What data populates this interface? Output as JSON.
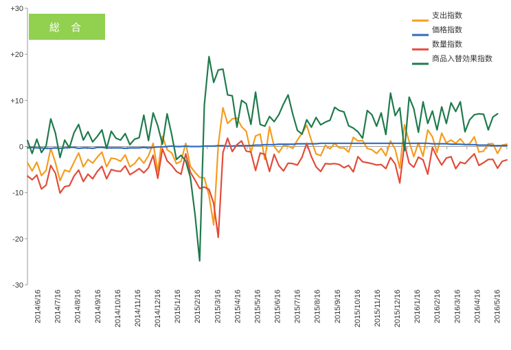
{
  "chart_data": {
    "type": "line",
    "badge": {
      "label": "総 合",
      "color": "#92D050"
    },
    "ylim": [
      -30,
      30
    ],
    "yticks": [
      30,
      20,
      10,
      0,
      -10,
      -20,
      -30
    ],
    "ytick_labels": [
      "+30",
      "+20",
      "+10",
      "0",
      "-10",
      "-20",
      "-30"
    ],
    "x_tick_labels": [
      "2014/6/16",
      "2014/7/16",
      "2014/8/16",
      "2014/9/16",
      "2014/10/16",
      "2014/11/16",
      "2014/12/16",
      "2015/1/16",
      "2015/2/16",
      "2015/3/16",
      "2015/4/16",
      "2015/5/16",
      "2015/6/16",
      "2015/7/16",
      "2015/8/16",
      "2015/9/16",
      "2015/10/16",
      "2015/11/16",
      "2015/12/16",
      "2016/1/16",
      "2016/2/16",
      "2016/3/16",
      "2016/4/16",
      "2016/5/16"
    ],
    "grid": false,
    "legend_position": "top-right",
    "series": [
      {
        "name": "支出指数",
        "color": "#F59C1D",
        "values": [
          -3.5,
          -5.3,
          -3.4,
          -6.3,
          -5.2,
          -0.4,
          -3.5,
          -7.4,
          -5.1,
          -5.5,
          -3.4,
          -1.4,
          -4.4,
          -2.8,
          -3.6,
          -2.3,
          -1.2,
          -4.4,
          -2.5,
          -2.7,
          -3.2,
          -1.8,
          -4.4,
          -3.7,
          -2.4,
          -3.6,
          -2.0,
          0.7,
          -5.4,
          2.2,
          -0.7,
          -1.4,
          -3.7,
          -3.2,
          0.7,
          -4.3,
          -5.6,
          -6.7,
          -6.8,
          -10.6,
          -17.0,
          0.4,
          8.4,
          5.0,
          6.0,
          6.2,
          4.3,
          3.3,
          -1.3,
          2.3,
          2.7,
          -2.8,
          4.3,
          0.0,
          -1.3,
          0.2,
          0.1,
          -0.4,
          1.4,
          2.9,
          4.6,
          1.3,
          -1.6,
          -2.0,
          0.3,
          -0.5,
          0.7,
          -0.3,
          -0.3,
          -1.2,
          2.0,
          1.2,
          1.3,
          -0.4,
          -0.7,
          -1.5,
          -0.4,
          -2.0,
          1.2,
          -0.6,
          -4.7,
          4.7,
          1.1,
          -2.2,
          0.8,
          -2.1,
          3.6,
          2.1,
          -1.3,
          2.9,
          0.8,
          1.4,
          0.7,
          1.7,
          0.4,
          0.6,
          2.1,
          -1.2,
          -1.0,
          0.6,
          0.6,
          -1.5,
          0.3,
          0.5
        ]
      },
      {
        "name": "価格指数",
        "color": "#2E6BC0",
        "values": [
          -0.3,
          -0.2,
          -0.3,
          -0.3,
          -0.4,
          -0.4,
          -0.3,
          -0.4,
          -0.3,
          -0.2,
          -0.2,
          -0.4,
          -0.3,
          -0.3,
          -0.4,
          -0.2,
          -0.2,
          -0.3,
          -0.3,
          -0.3,
          -0.3,
          -0.4,
          -0.3,
          -0.3,
          -0.3,
          -0.2,
          -0.3,
          -0.2,
          -0.1,
          -0.1,
          0.0,
          0.1,
          0.0,
          0.0,
          0.1,
          0.0,
          0.0,
          0.0,
          0.1,
          0.1,
          0.1,
          0.2,
          0.2,
          0.1,
          0.1,
          0.2,
          0.2,
          0.2,
          0.2,
          0.3,
          0.3,
          0.4,
          0.4,
          0.4,
          0.5,
          0.5,
          0.5,
          0.5,
          0.6,
          0.6,
          0.6,
          0.6,
          0.6,
          0.7,
          0.7,
          0.7,
          0.7,
          0.7,
          0.7,
          0.7,
          0.7,
          0.7,
          0.7,
          0.7,
          0.7,
          0.7,
          0.7,
          0.7,
          0.7,
          0.7,
          0.7,
          0.7,
          0.7,
          0.7,
          0.7,
          0.7,
          0.7,
          0.6,
          0.6,
          0.6,
          0.6,
          0.5,
          0.5,
          0.5,
          0.4,
          0.4,
          0.4,
          0.3,
          0.3,
          0.3,
          0.2,
          0.2,
          0.2,
          0.2
        ]
      },
      {
        "name": "数量指数",
        "color": "#E14B39",
        "values": [
          -6.4,
          -7.2,
          -6.2,
          -9.2,
          -8.4,
          -4.1,
          -5.8,
          -10.1,
          -8.7,
          -8.5,
          -6.4,
          -5.1,
          -7.6,
          -6.0,
          -7.0,
          -5.4,
          -4.3,
          -7.0,
          -5.0,
          -5.3,
          -5.4,
          -4.2,
          -6.1,
          -5.5,
          -4.8,
          -5.7,
          -4.6,
          -1.9,
          -6.9,
          -0.5,
          -3.1,
          -4.1,
          -5.4,
          -6.0,
          -1.6,
          -5.6,
          -7.3,
          -9.1,
          -8.8,
          -9.3,
          -12.3,
          -19.7,
          -1.3,
          1.8,
          -1.1,
          0.4,
          1.2,
          -1.0,
          -1.2,
          -5.2,
          -1.4,
          -1.7,
          -5.4,
          -1.7,
          -4.1,
          -5.3,
          -3.6,
          -3.7,
          -4.0,
          -2.3,
          0.7,
          -2.2,
          -4.4,
          -5.4,
          -3.7,
          -3.8,
          -3.7,
          -3.9,
          -4.6,
          -4.1,
          -5.5,
          -2.2,
          -3.3,
          -3.5,
          -3.7,
          -4.0,
          -3.9,
          -4.8,
          -2.4,
          -3.8,
          -7.9,
          0.6,
          -3.6,
          -4.5,
          -2.3,
          -2.9,
          -6.0,
          -0.2,
          -2.3,
          -4.0,
          -2.5,
          -2.2,
          -4.8,
          -3.4,
          -3.7,
          -2.6,
          -1.6,
          -4.1,
          -3.5,
          -2.8,
          -2.8,
          -4.7,
          -3.2,
          -2.9
        ]
      },
      {
        "name": "商品入替効果指数",
        "color": "#1F7A4C",
        "values": [
          1.3,
          -1.5,
          1.6,
          -1.3,
          0.1,
          6.0,
          2.9,
          -2.4,
          1.4,
          -0.3,
          3.0,
          4.8,
          1.4,
          3.2,
          1.0,
          2.2,
          3.6,
          -0.4,
          3.3,
          1.8,
          1.4,
          2.8,
          0.4,
          1.6,
          1.9,
          6.8,
          1.3,
          7.3,
          4.5,
          0.5,
          7.1,
          2.5,
          -2.8,
          -1.9,
          -3.1,
          -6.7,
          -14.8,
          -24.8,
          9.0,
          19.5,
          13.9,
          16.6,
          16.8,
          11.2,
          11.0,
          4.2,
          10.0,
          9.3,
          4.8,
          11.8,
          4.8,
          4.4,
          6.5,
          5.4,
          6.9,
          9.2,
          11.2,
          7.0,
          3.5,
          2.7,
          5.8,
          4.2,
          6.3,
          4.7,
          5.3,
          5.7,
          8.5,
          7.8,
          7.5,
          4.5,
          4.0,
          3.2,
          1.8,
          7.8,
          6.9,
          4.4,
          7.3,
          2.6,
          11.6,
          6.7,
          8.4,
          -0.9,
          10.7,
          8.2,
          3.1,
          9.7,
          5.0,
          7.7,
          3.6,
          8.6,
          5.0,
          9.5,
          7.6,
          9.7,
          3.2,
          5.8,
          6.9,
          7.1,
          7.0,
          3.6,
          6.4,
          7.1
        ]
      }
    ]
  }
}
